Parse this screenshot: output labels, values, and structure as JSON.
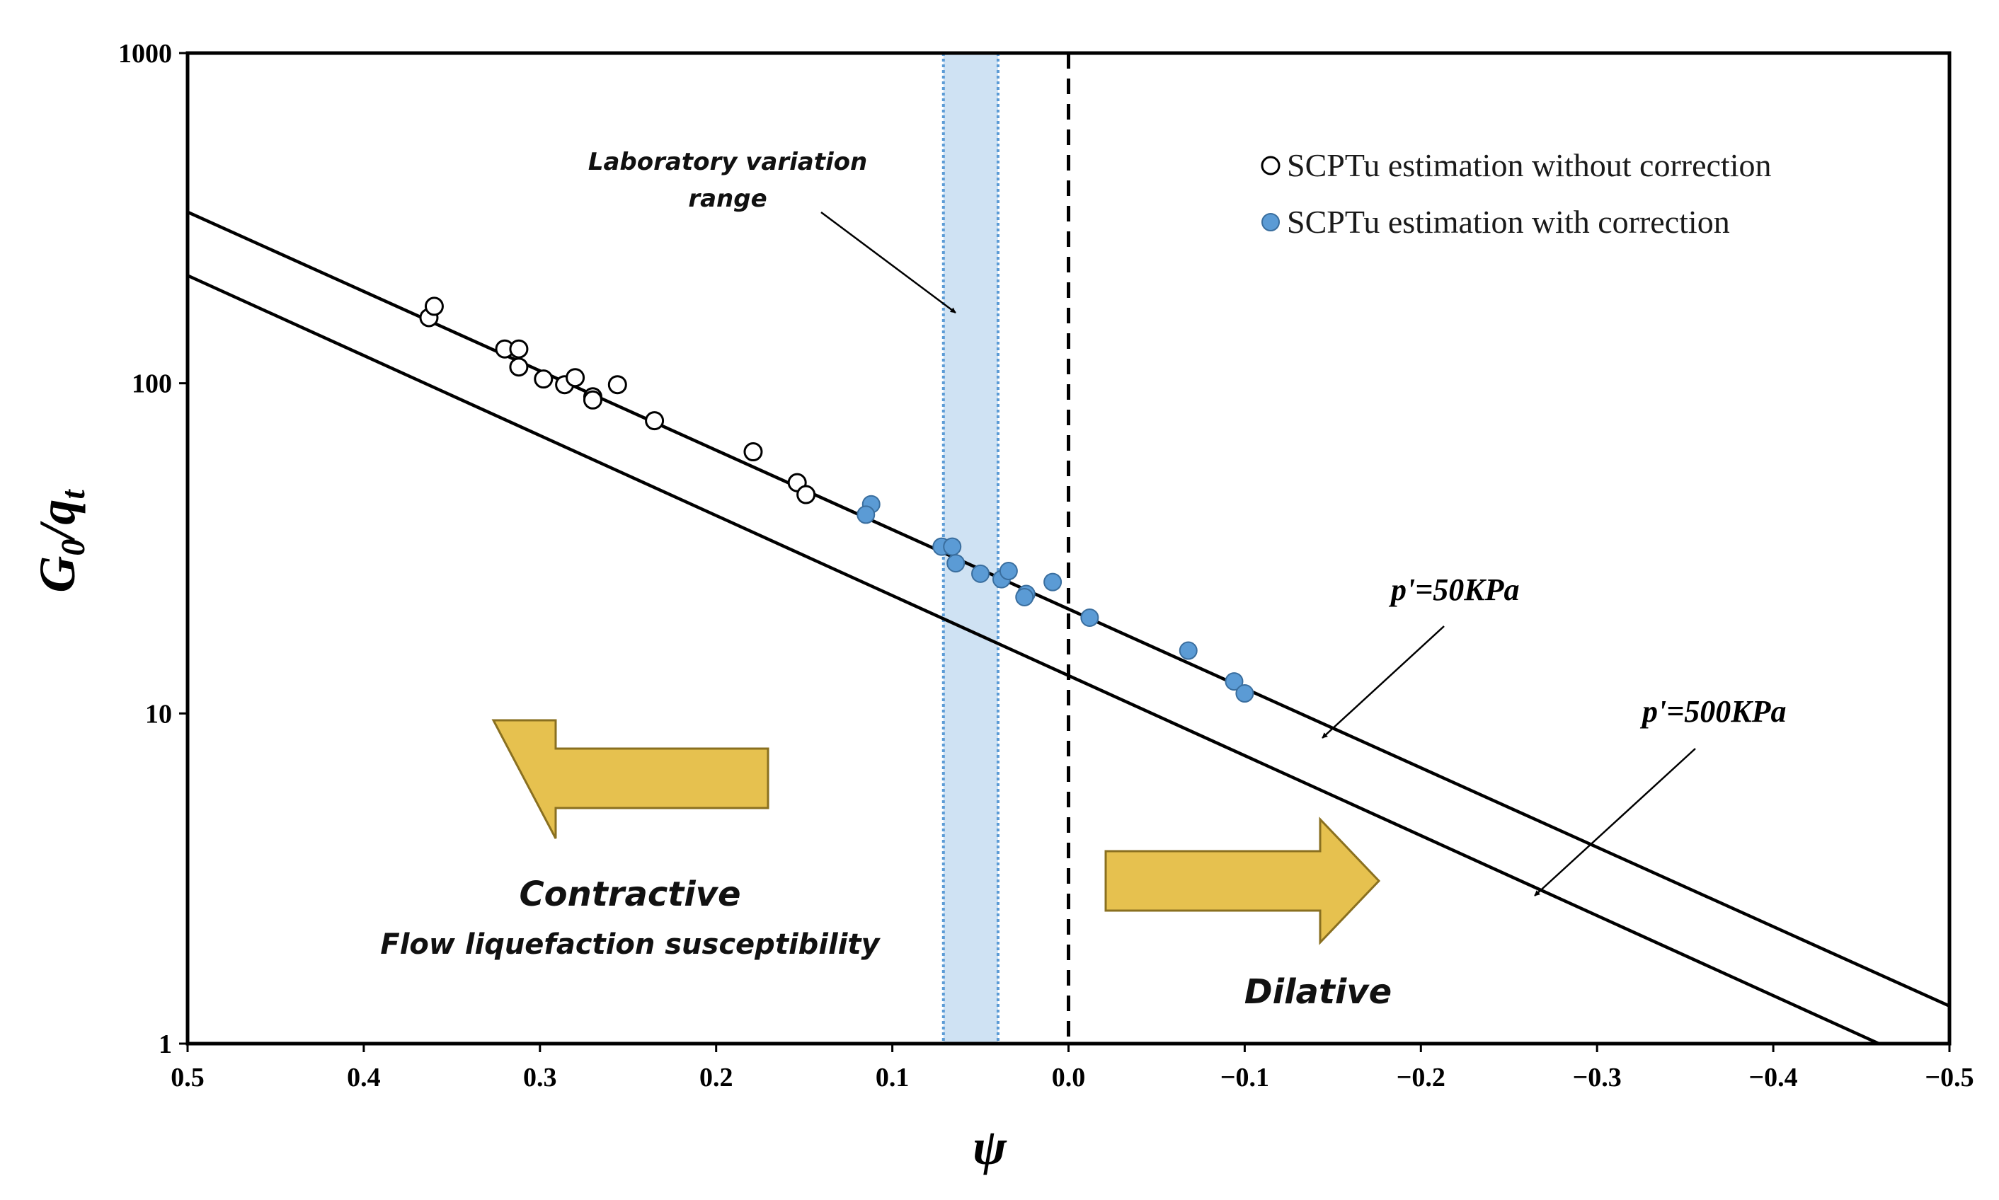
{
  "chart_data": {
    "type": "scatter",
    "title": "",
    "xlabel": "ψ",
    "ylabel": {
      "main": "G",
      "sub0": "0",
      "slash": "/q",
      "sub1": "t"
    },
    "x_axis": {
      "min": 0.5,
      "max": -0.5,
      "reversed": true,
      "ticks": [
        0.5,
        0.4,
        0.3,
        0.2,
        0.1,
        0.0,
        -0.1,
        -0.2,
        -0.3,
        -0.4,
        -0.5
      ],
      "tick_labels": [
        "0.5",
        "0.4",
        "0.3",
        "0.2",
        "0.1",
        "0.0",
        "−0.1",
        "−0.2",
        "−0.3",
        "−0.4",
        "−0.5"
      ]
    },
    "y_axis": {
      "scale": "log",
      "min": 1,
      "max": 1000,
      "ticks": [
        1,
        10,
        100,
        1000
      ],
      "tick_labels": [
        "1",
        "10",
        "100",
        "1000"
      ]
    },
    "grid": false,
    "legend": {
      "placement": "top-right",
      "entries": [
        {
          "label": "SCPTu estimation without correction",
          "marker": "open-circle"
        },
        {
          "label": "SCPTu estimation with correction",
          "marker": "filled-circle"
        }
      ]
    },
    "colors": {
      "filled_marker": "#5b9bd5",
      "filled_marker_edge": "#3a6e9e",
      "arrow_fill": "#e6c14f",
      "arrow_edge": "#8a7020",
      "band_fill": "#cfe2f3",
      "band_edge": "#5b9bd5",
      "axis": "#000000"
    },
    "series": [
      {
        "name": "SCPTu estimation without correction",
        "marker": "open-circle",
        "points": [
          {
            "x": 0.363,
            "y": 158
          },
          {
            "x": 0.36,
            "y": 171
          },
          {
            "x": 0.32,
            "y": 127
          },
          {
            "x": 0.312,
            "y": 127
          },
          {
            "x": 0.312,
            "y": 112
          },
          {
            "x": 0.298,
            "y": 103
          },
          {
            "x": 0.286,
            "y": 99
          },
          {
            "x": 0.28,
            "y": 104
          },
          {
            "x": 0.27,
            "y": 91
          },
          {
            "x": 0.27,
            "y": 89
          },
          {
            "x": 0.256,
            "y": 99
          },
          {
            "x": 0.235,
            "y": 77
          },
          {
            "x": 0.179,
            "y": 62
          },
          {
            "x": 0.154,
            "y": 50
          },
          {
            "x": 0.149,
            "y": 46
          }
        ]
      },
      {
        "name": "SCPTu estimation with correction",
        "marker": "filled-circle",
        "points": [
          {
            "x": 0.112,
            "y": 43
          },
          {
            "x": 0.115,
            "y": 40
          },
          {
            "x": 0.072,
            "y": 32
          },
          {
            "x": 0.066,
            "y": 32
          },
          {
            "x": 0.064,
            "y": 28.5
          },
          {
            "x": 0.05,
            "y": 26.5
          },
          {
            "x": 0.038,
            "y": 25.5
          },
          {
            "x": 0.034,
            "y": 27
          },
          {
            "x": 0.024,
            "y": 23
          },
          {
            "x": 0.025,
            "y": 22.5
          },
          {
            "x": 0.009,
            "y": 25
          },
          {
            "x": -0.012,
            "y": 19.5
          },
          {
            "x": -0.068,
            "y": 15.5
          },
          {
            "x": -0.094,
            "y": 12.5
          },
          {
            "x": -0.1,
            "y": 11.5
          }
        ]
      }
    ],
    "reference_lines": [
      {
        "name": "p'=50KPa",
        "type": "trend",
        "points": [
          {
            "x": 0.5,
            "y": 330
          },
          {
            "x": -0.5,
            "y": 1.3
          }
        ]
      },
      {
        "name": "p'=500KPa",
        "type": "trend",
        "points": [
          {
            "x": 0.5,
            "y": 212
          },
          {
            "x": -0.46,
            "y": 1.0
          }
        ]
      },
      {
        "name": "zero-line",
        "type": "vertical-dashed",
        "x": 0.0
      }
    ],
    "shaded_band": {
      "x_from": 0.071,
      "x_to": 0.04,
      "label": "Laboratory variation range"
    },
    "annotations": {
      "lab_range_line1": "Laboratory variation",
      "lab_range_line2": "range",
      "p50_label": "p'=50KPa",
      "p500_label": "p'=500KPa",
      "contractive": "Contractive",
      "flow_liquefaction": "Flow liquefaction  susceptibility",
      "dilative": "Dilative"
    }
  }
}
